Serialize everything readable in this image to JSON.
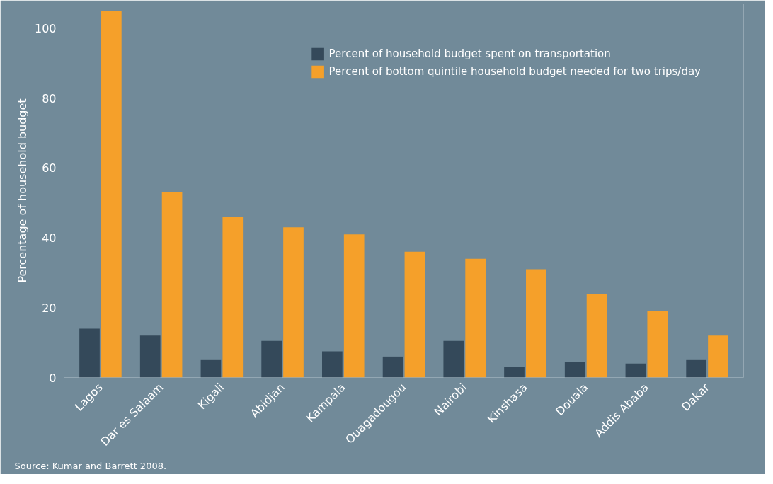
{
  "chart_data": {
    "type": "bar",
    "ylabel": "Percentage of household budget",
    "categories": [
      "Lagos",
      "Dar es Salaam",
      "Kigali",
      "Abidjan",
      "Kampala",
      "Ouagadougou",
      "Nairobi",
      "Kinshasa",
      "Douala",
      "Addis Ababa",
      "Dakar"
    ],
    "series": [
      {
        "name": "Percent of household budget spent on transportation",
        "color": "#34495a",
        "values": [
          14,
          12,
          5,
          10.5,
          7.5,
          6,
          10.5,
          3,
          4.5,
          4,
          5
        ]
      },
      {
        "name": "Percent of bottom quintile household budget needed for two trips/day",
        "color": "#f5a02a",
        "values": [
          105,
          53,
          46,
          43,
          41,
          36,
          34,
          31,
          24,
          19,
          12
        ]
      }
    ],
    "ylim": [
      0,
      107
    ],
    "yticks": [
      0,
      20,
      40,
      60,
      80,
      100
    ],
    "grid": false,
    "legend": "top right",
    "annotations": [
      "Source: Kumar and Barrett 2008."
    ]
  }
}
